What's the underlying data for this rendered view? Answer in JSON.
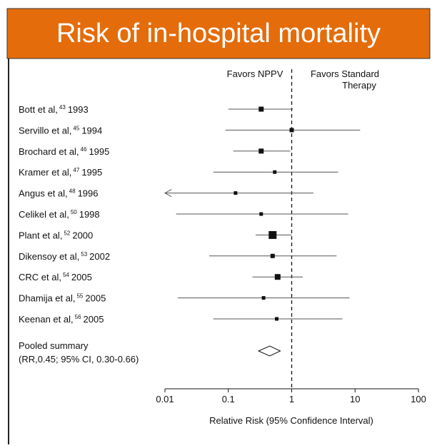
{
  "chart_data": {
    "type": "forest",
    "title": "Risk of in-hospital mortality",
    "annotations": {
      "left": [
        "Favors NPPV"
      ],
      "right": [
        "Favors Standard",
        "Therapy"
      ]
    },
    "categories": [
      "Bott et al,",
      "Servillo et al,",
      "Brochard et al,",
      "Kramer et al,",
      "Angus et al,",
      "Celikel et al,",
      "Plant et al,",
      "Dikensoy et al,",
      "CRC et al,",
      "Dhamija et al,",
      "Keenan et al,"
    ],
    "refs": [
      "43",
      "45",
      "46",
      "47",
      "48",
      "50",
      "52",
      "53",
      "54",
      "55",
      "56"
    ],
    "years": [
      "1993",
      "1994",
      "1995",
      "1995",
      "1996",
      "1998",
      "2000",
      "2002",
      "2005",
      "2005",
      "2005"
    ],
    "values": [
      0.33,
      1.0,
      0.33,
      0.54,
      0.13,
      0.33,
      0.5,
      0.5,
      0.6,
      0.36,
      0.58
    ],
    "lower": [
      0.1,
      0.09,
      0.12,
      0.058,
      0.01,
      0.015,
      0.27,
      0.05,
      0.24,
      0.016,
      0.058
    ],
    "upper": [
      1.05,
      12,
      0.95,
      5.4,
      2.2,
      7.8,
      1.0,
      5.1,
      1.5,
      8.2,
      6.3
    ],
    "lower_arrow": [
      false,
      false,
      false,
      false,
      true,
      false,
      false,
      false,
      false,
      false,
      false
    ],
    "marker_size": [
      7,
      6,
      7,
      5,
      5,
      5,
      11,
      6,
      8,
      5,
      5
    ],
    "pooled": {
      "label": [
        "Pooled summary",
        "(RR,0.45; 95% CI, 0.30-0.66)"
      ],
      "value": 0.45,
      "lower": 0.3,
      "upper": 0.66
    },
    "x_label": "Relative Risk (95% Confidence Interval)",
    "log_x": true,
    "xlim": [
      0.01,
      100
    ],
    "xticks": [
      0.01,
      0.1,
      1,
      10,
      100
    ],
    "reference_line": 1,
    "color": "#111111",
    "header_color": "#e46c0a"
  }
}
